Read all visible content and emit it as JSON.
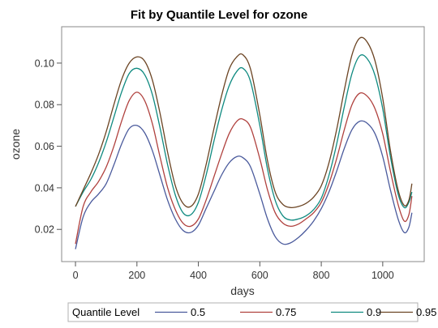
{
  "chart_data": {
    "type": "line",
    "title": "Fit by Quantile Level for ozone",
    "xlabel": "days",
    "ylabel": "ozone",
    "xlim": [
      -45,
      1135
    ],
    "ylim": [
      0.0045,
      0.1175
    ],
    "x_ticks": [
      "0",
      "200",
      "400",
      "600",
      "800",
      "1000"
    ],
    "y_ticks": [
      "0.02",
      "0.04",
      "0.06",
      "0.08",
      "0.10"
    ],
    "grid": false,
    "legend": {
      "title": "Quantile Level",
      "placement": "bottom"
    },
    "series": [
      {
        "name": "0.5",
        "color": "#4a5a9c",
        "x": [
          0,
          25,
          50,
          75,
          100,
          125,
          150,
          175,
          200,
          225,
          250,
          275,
          300,
          325,
          350,
          375,
          400,
          425,
          450,
          475,
          500,
          525,
          545,
          570,
          600,
          625,
          650,
          675,
          700,
          725,
          750,
          775,
          800,
          825,
          850,
          875,
          900,
          925,
          950,
          975,
          1000,
          1025,
          1050,
          1070,
          1085,
          1095
        ],
        "y": [
          0.0105,
          0.026,
          0.033,
          0.037,
          0.042,
          0.051,
          0.061,
          0.0685,
          0.07,
          0.0665,
          0.058,
          0.046,
          0.034,
          0.025,
          0.0195,
          0.0185,
          0.022,
          0.03,
          0.038,
          0.046,
          0.052,
          0.055,
          0.0545,
          0.05,
          0.037,
          0.025,
          0.0165,
          0.013,
          0.0135,
          0.016,
          0.0195,
          0.024,
          0.03,
          0.038,
          0.048,
          0.059,
          0.068,
          0.072,
          0.071,
          0.066,
          0.055,
          0.039,
          0.025,
          0.0185,
          0.021,
          0.028
        ]
      },
      {
        "name": "0.75",
        "color": "#b0413e",
        "x": [
          0,
          25,
          50,
          75,
          100,
          125,
          150,
          175,
          200,
          225,
          250,
          275,
          300,
          325,
          350,
          375,
          400,
          425,
          450,
          475,
          500,
          525,
          545,
          570,
          600,
          625,
          650,
          675,
          700,
          725,
          750,
          775,
          800,
          825,
          850,
          875,
          900,
          925,
          950,
          975,
          1000,
          1025,
          1050,
          1070,
          1085,
          1095
        ],
        "y": [
          0.013,
          0.031,
          0.038,
          0.043,
          0.05,
          0.06,
          0.072,
          0.082,
          0.086,
          0.082,
          0.071,
          0.055,
          0.04,
          0.0295,
          0.023,
          0.0215,
          0.025,
          0.034,
          0.045,
          0.056,
          0.066,
          0.072,
          0.073,
          0.069,
          0.054,
          0.039,
          0.028,
          0.023,
          0.0215,
          0.0225,
          0.025,
          0.028,
          0.033,
          0.042,
          0.054,
          0.068,
          0.08,
          0.0855,
          0.084,
          0.078,
          0.066,
          0.048,
          0.032,
          0.024,
          0.027,
          0.036
        ]
      },
      {
        "name": "0.9",
        "color": "#0f8a80",
        "x": [
          0,
          25,
          50,
          75,
          100,
          125,
          150,
          175,
          200,
          225,
          250,
          275,
          300,
          325,
          350,
          375,
          400,
          425,
          450,
          475,
          500,
          525,
          545,
          570,
          600,
          625,
          650,
          675,
          700,
          725,
          750,
          775,
          800,
          825,
          850,
          875,
          900,
          925,
          950,
          975,
          1000,
          1025,
          1050,
          1070,
          1085,
          1095
        ],
        "y": [
          0.031,
          0.038,
          0.044,
          0.052,
          0.062,
          0.074,
          0.086,
          0.095,
          0.0975,
          0.0945,
          0.085,
          0.069,
          0.051,
          0.0365,
          0.028,
          0.027,
          0.033,
          0.046,
          0.062,
          0.077,
          0.089,
          0.096,
          0.0975,
          0.091,
          0.07,
          0.049,
          0.034,
          0.0265,
          0.0245,
          0.025,
          0.0265,
          0.0295,
          0.035,
          0.046,
          0.061,
          0.079,
          0.095,
          0.1035,
          0.102,
          0.094,
          0.078,
          0.055,
          0.037,
          0.0305,
          0.033,
          0.038
        ]
      },
      {
        "name": "0.95",
        "color": "#6b4423",
        "x": [
          0,
          25,
          50,
          75,
          100,
          125,
          150,
          175,
          200,
          225,
          250,
          275,
          300,
          325,
          350,
          375,
          400,
          425,
          450,
          475,
          500,
          525,
          545,
          570,
          600,
          625,
          650,
          675,
          700,
          725,
          750,
          775,
          800,
          825,
          850,
          875,
          900,
          925,
          950,
          975,
          1000,
          1025,
          1050,
          1070,
          1085,
          1095
        ],
        "y": [
          0.031,
          0.039,
          0.047,
          0.056,
          0.067,
          0.08,
          0.092,
          0.1,
          0.103,
          0.101,
          0.092,
          0.076,
          0.057,
          0.041,
          0.0325,
          0.031,
          0.037,
          0.051,
          0.068,
          0.084,
          0.097,
          0.103,
          0.104,
          0.097,
          0.075,
          0.053,
          0.038,
          0.032,
          0.0305,
          0.031,
          0.0325,
          0.0355,
          0.041,
          0.052,
          0.068,
          0.087,
          0.104,
          0.112,
          0.11,
          0.101,
          0.083,
          0.058,
          0.039,
          0.0315,
          0.034,
          0.042
        ]
      }
    ]
  }
}
